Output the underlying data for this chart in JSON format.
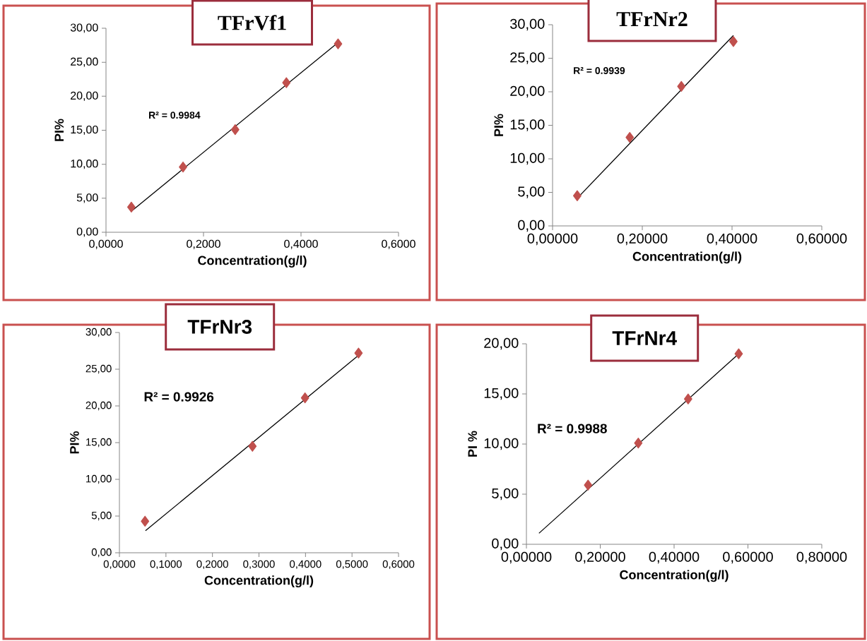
{
  "chart_data": [
    {
      "type": "scatter",
      "title": "TFrVf1",
      "xlabel": "Concentration(g/l)",
      "ylabel": "PI%",
      "annotations": [
        "R² = 0.9984"
      ],
      "xlim": [
        0,
        0.6
      ],
      "xticks": [
        {
          "value": 0,
          "label": "0,0000"
        },
        {
          "value": 0.2,
          "label": "0,2000"
        },
        {
          "value": 0.4,
          "label": "0,4000"
        },
        {
          "value": 0.6,
          "label": "0,6000"
        }
      ],
      "ylim": [
        0,
        30
      ],
      "yticks": [
        {
          "value": 0,
          "label": "0,00"
        },
        {
          "value": 5,
          "label": "5,00"
        },
        {
          "value": 10,
          "label": "10,00"
        },
        {
          "value": 15,
          "label": "15,00"
        },
        {
          "value": 20,
          "label": "20,00"
        },
        {
          "value": 25,
          "label": "25,00"
        },
        {
          "value": 30,
          "label": "30,00"
        }
      ],
      "series": [
        {
          "color": "#c0504d",
          "marker": "diamond",
          "x": [
            0.052,
            0.158,
            0.265,
            0.37,
            0.476
          ],
          "values": [
            3.7,
            9.6,
            15.1,
            22.0,
            27.7
          ]
        },
        {
          "type": "line",
          "color": "#000000",
          "marker": "none",
          "x": [
            0.052,
            0.476
          ],
          "values": [
            3.1,
            27.9
          ]
        }
      ]
    },
    {
      "type": "scatter",
      "title": "TFrNr2",
      "xlabel": "Concentration(g/l)",
      "ylabel": "PI%",
      "annotations": [
        "R² = 0.9939"
      ],
      "xlim": [
        0,
        0.6
      ],
      "xticks": [
        {
          "value": 0,
          "label": "0,00000"
        },
        {
          "value": 0.2,
          "label": "0,20000"
        },
        {
          "value": 0.4,
          "label": "0,40000"
        },
        {
          "value": 0.6,
          "label": "0,60000"
        }
      ],
      "ylim": [
        0,
        30
      ],
      "yticks": [
        {
          "value": 0,
          "label": "0,00"
        },
        {
          "value": 5,
          "label": "5,00"
        },
        {
          "value": 10,
          "label": "10,00"
        },
        {
          "value": 15,
          "label": "15,00"
        },
        {
          "value": 20,
          "label": "20,00"
        },
        {
          "value": 25,
          "label": "25,00"
        },
        {
          "value": 30,
          "label": "30,00"
        }
      ],
      "series": [
        {
          "color": "#c0504d",
          "marker": "diamond",
          "x": [
            0.055,
            0.172,
            0.287,
            0.403
          ],
          "values": [
            4.5,
            13.2,
            20.8,
            27.5
          ]
        },
        {
          "type": "line",
          "color": "#000000",
          "marker": "none",
          "x": [
            0.056,
            0.403
          ],
          "values": [
            4.2,
            28.4
          ]
        }
      ]
    },
    {
      "type": "scatter",
      "title": "TFrNr3",
      "xlabel": "Concentration(g/l)",
      "ylabel": "PI%",
      "annotations": [
        "R² = 0.9926"
      ],
      "xlim": [
        0,
        0.6
      ],
      "xticks": [
        {
          "value": 0,
          "label": "0,0000"
        },
        {
          "value": 0.1,
          "label": "0,1000"
        },
        {
          "value": 0.2,
          "label": "0,2000"
        },
        {
          "value": 0.3,
          "label": "0,3000"
        },
        {
          "value": 0.4,
          "label": "0,4000"
        },
        {
          "value": 0.5,
          "label": "0,5000"
        },
        {
          "value": 0.6,
          "label": "0,6000"
        }
      ],
      "ylim": [
        0,
        30
      ],
      "yticks": [
        {
          "value": 0,
          "label": "0,00"
        },
        {
          "value": 5,
          "label": "5,00"
        },
        {
          "value": 10,
          "label": "10,00"
        },
        {
          "value": 15,
          "label": "15,00"
        },
        {
          "value": 20,
          "label": "20,00"
        },
        {
          "value": 25,
          "label": "25,00"
        },
        {
          "value": 30,
          "label": "30,00"
        }
      ],
      "series": [
        {
          "color": "#c0504d",
          "marker": "diamond",
          "x": [
            0.055,
            0.286,
            0.399,
            0.514
          ],
          "values": [
            4.3,
            14.5,
            21.1,
            27.2
          ]
        },
        {
          "type": "line",
          "color": "#000000",
          "marker": "none",
          "x": [
            0.056,
            0.516
          ],
          "values": [
            3.0,
            27.0
          ]
        }
      ]
    },
    {
      "type": "scatter",
      "title": "TFrNr4",
      "xlabel": "Concentration(g/l)",
      "ylabel": "PI %",
      "annotations": [
        "R² = 0.9988"
      ],
      "xlim": [
        0,
        0.8
      ],
      "xticks": [
        {
          "value": 0,
          "label": "0,00000"
        },
        {
          "value": 0.2,
          "label": "0,20000"
        },
        {
          "value": 0.4,
          "label": "0,40000"
        },
        {
          "value": 0.6,
          "label": "0,60000"
        },
        {
          "value": 0.8,
          "label": "0,80000"
        }
      ],
      "ylim": [
        0,
        20
      ],
      "yticks": [
        {
          "value": 0,
          "label": "0,00"
        },
        {
          "value": 5,
          "label": "5,00"
        },
        {
          "value": 10,
          "label": "10,00"
        },
        {
          "value": 15,
          "label": "15,00"
        },
        {
          "value": 20,
          "label": "20,00"
        }
      ],
      "series": [
        {
          "color": "#c0504d",
          "marker": "diamond",
          "x": [
            0.167,
            0.303,
            0.438,
            0.575
          ],
          "values": [
            5.9,
            10.1,
            14.5,
            19.0
          ]
        },
        {
          "type": "line",
          "color": "#000000",
          "marker": "none",
          "x": [
            0.034,
            0.575
          ],
          "values": [
            1.1,
            19.0
          ]
        }
      ]
    }
  ]
}
